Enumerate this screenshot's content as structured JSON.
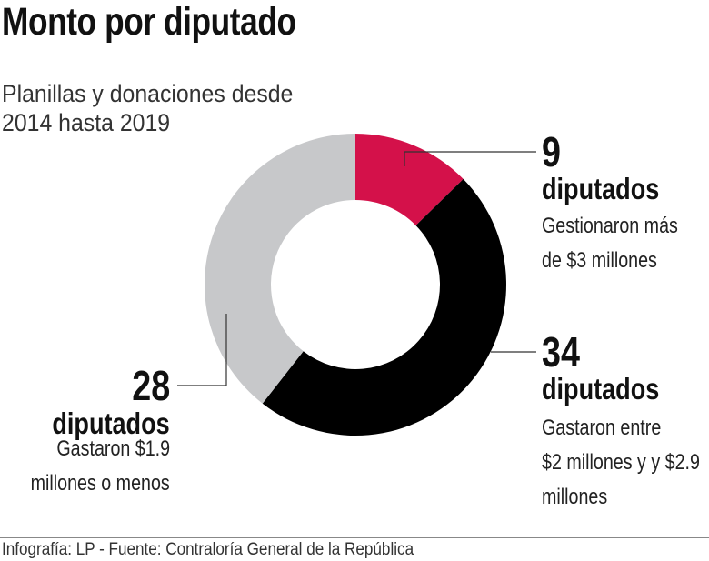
{
  "title": "Monto por diputado",
  "subtitle": [
    "Planillas y donaciones desde",
    "2014 hasta 2019"
  ],
  "chart_data": {
    "type": "pie",
    "donut": true,
    "start": "top",
    "direction": "clockwise",
    "categories": [
      "Gestionaron más de $3 millones",
      "Gastaron entre $2 millones y y $2.9 millones",
      "Gastaron $1.9 millones o menos"
    ],
    "values": [
      9,
      34,
      28
    ],
    "colors": [
      "#d4114a",
      "#000000",
      "#c7c8ca"
    ]
  },
  "labels": {
    "red": {
      "number": "9",
      "unit": "diputados",
      "desc": [
        "Gestionaron más",
        "de $3 millones"
      ]
    },
    "black": {
      "number": "34",
      "unit": "diputados",
      "desc": [
        "Gastaron entre",
        "$2 millones y y $2.9",
        "millones"
      ]
    },
    "gray": {
      "number": "28",
      "unit": "diputados",
      "desc": [
        "Gastaron $1.9",
        "millones o menos"
      ]
    }
  },
  "footer": "Infografía: LP - Fuente: Contraloría General de la República"
}
